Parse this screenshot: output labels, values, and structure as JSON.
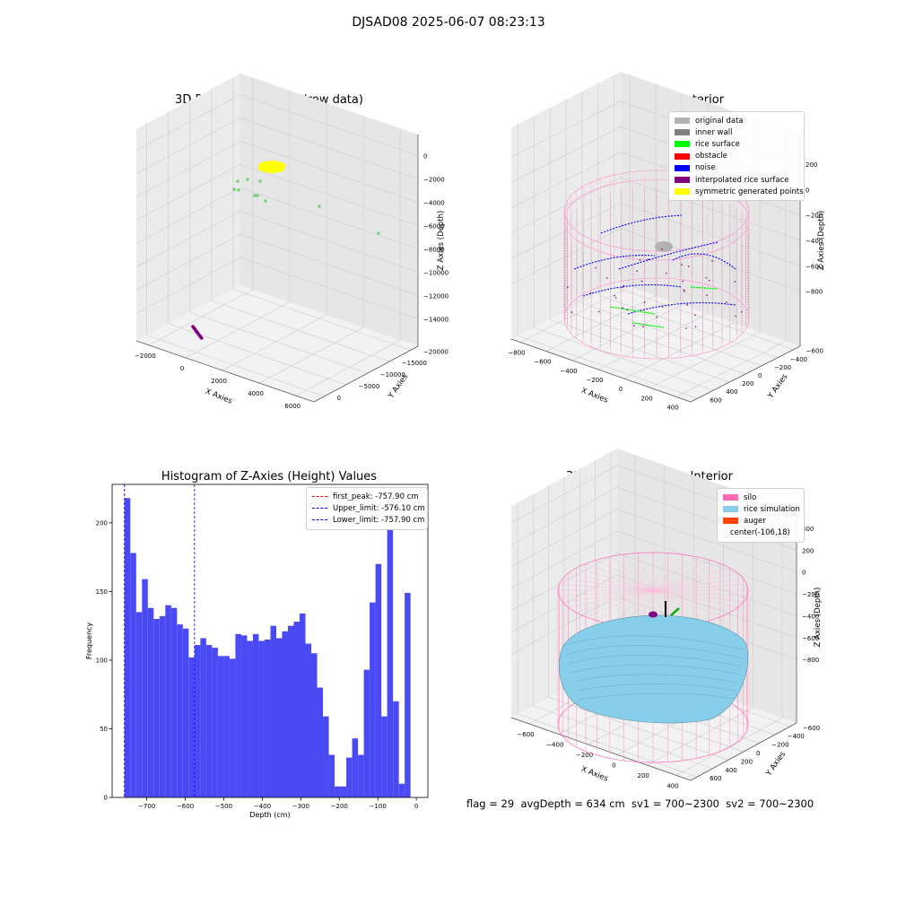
{
  "suptitle": "DJSAD08 2025-06-07 08:23:13",
  "footer": "flag = 29  avgDepth = 634 cm  sv1 = 700~2300  sv2 = 700~2300",
  "colors": {
    "original": "#b2b2b2",
    "inner_wall": "#808080",
    "rice_surface": "#00ff00",
    "obstacle": "#ff0000",
    "noise": "#0000ff",
    "interpolated": "#800080",
    "symmetric": "#ffff00",
    "silo": "#ff69b4",
    "rice_sim": "#87ceeb",
    "auger": "#ff4500",
    "hist_bar": "#4a4af5"
  },
  "chart_data": [
    {
      "type": "scatter",
      "title": "3D Plot of Silo Interior(row data)",
      "xlabel": "X Axies",
      "ylabel": "Y Axies",
      "zlabel": "Z Axies (Depth)",
      "x_ticks": [
        "−2000",
        "0",
        "2000",
        "4000",
        "6000"
      ],
      "y_ticks": [
        "0",
        "−5000",
        "−10000",
        "−15000",
        "−20000"
      ],
      "z_ticks": [
        "0",
        "−2000",
        "−4000",
        "−6000",
        "−8000",
        "−10000",
        "−12000",
        "−14000"
      ],
      "grid": true
    },
    {
      "type": "scatter",
      "title": "3D classify of Silo Interior",
      "xlabel": "X Axies",
      "ylabel": "Y Axies",
      "zlabel": "Z Axies (Depth)",
      "x_ticks": [
        "−800",
        "−600",
        "−400",
        "−200",
        "0",
        "200",
        "400"
      ],
      "y_ticks": [
        "600",
        "400",
        "200",
        "0",
        "−200",
        "−400",
        "−600"
      ],
      "z_ticks": [
        "200",
        "0",
        "−200",
        "−400",
        "−600",
        "−800"
      ],
      "legend": [
        "original data",
        "inner wall",
        "rice surface",
        "obstacle",
        "noise",
        "interpolated rice surface",
        "symmetric generated points"
      ],
      "legend_position": "top-right",
      "grid": true
    },
    {
      "type": "bar",
      "title": "Histogram of Z-Axies (Height) Values",
      "xlabel": "Depth (cm)",
      "ylabel": "Frequency",
      "xlim": [
        -790,
        30
      ],
      "ylim": [
        0,
        228
      ],
      "x_ticks": [
        -700,
        -600,
        -500,
        -400,
        -300,
        -200,
        -100,
        0
      ],
      "y_ticks": [
        0,
        50,
        100,
        150,
        200
      ],
      "bin_start": -757.9,
      "bin_width": 15.16,
      "values": [
        218,
        178,
        135,
        159,
        138,
        130,
        132,
        140,
        138,
        126,
        123,
        102,
        111,
        116,
        111,
        109,
        103,
        103,
        101,
        119,
        118,
        114,
        119,
        114,
        115,
        125,
        116,
        121,
        125,
        128,
        134,
        112,
        105,
        80,
        59,
        31,
        8,
        8,
        29,
        43,
        31,
        93,
        142,
        170,
        59,
        195,
        70,
        10,
        149
      ],
      "vlines": [
        {
          "label": "first_peak: -757.90 cm",
          "x": -757.9,
          "color": "#ff0000"
        },
        {
          "label": "Upper_limit: -576.10 cm",
          "x": -576.1,
          "color": "#0000ff"
        },
        {
          "label": "Lower_limit: -757.90 cm",
          "x": -757.9,
          "color": "#0000ff"
        }
      ],
      "legend_position": "top-right"
    },
    {
      "type": "scatter",
      "title": "3D simulation of Silo Interior",
      "xlabel": "X Axies",
      "ylabel": "Y Axies",
      "zlabel": "Z Axies (Depth)",
      "x_ticks": [
        "−600",
        "−400",
        "−200",
        "0",
        "200",
        "400"
      ],
      "y_ticks": [
        "600",
        "400",
        "200",
        "0",
        "−200",
        "−400",
        "−600"
      ],
      "z_ticks": [
        "400",
        "200",
        "0",
        "−200",
        "−400",
        "−600",
        "−800"
      ],
      "legend": [
        "silo",
        "rice simulation",
        "auger",
        "center(-106,18)"
      ],
      "legend_position": "top-right",
      "grid": true
    }
  ]
}
